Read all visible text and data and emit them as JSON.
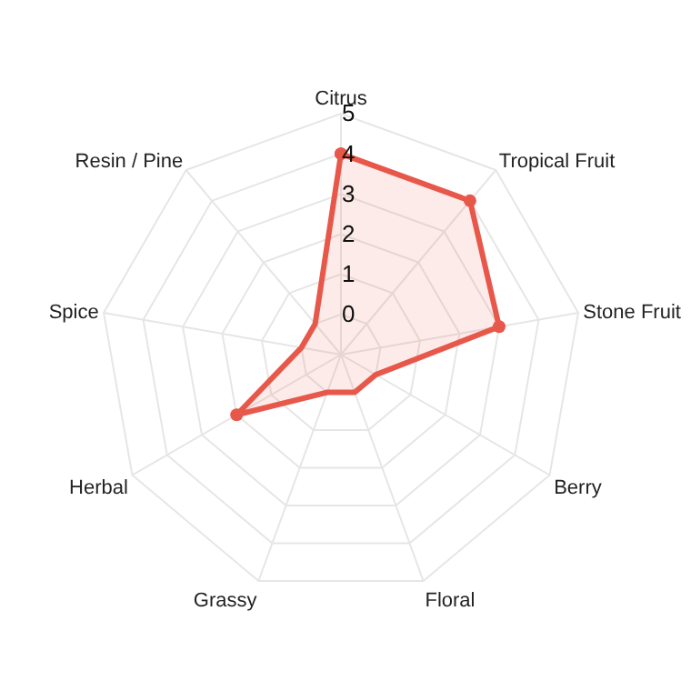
{
  "chart_data": {
    "type": "radar",
    "categories": [
      "Citrus",
      "Tropical Fruit",
      "Stone Fruit",
      "Berry",
      "Floral",
      "Grassy",
      "Herbal",
      "Spice",
      "Resin / Pine"
    ],
    "series": [
      {
        "color": "#e8584a",
        "values": [
          4,
          4,
          3,
          0,
          0,
          0,
          2,
          0,
          0
        ]
      }
    ],
    "ylim": [
      -1,
      5
    ],
    "yticks": [
      0,
      1,
      2,
      3,
      4,
      5
    ],
    "marker": "circle",
    "grid": true
  }
}
